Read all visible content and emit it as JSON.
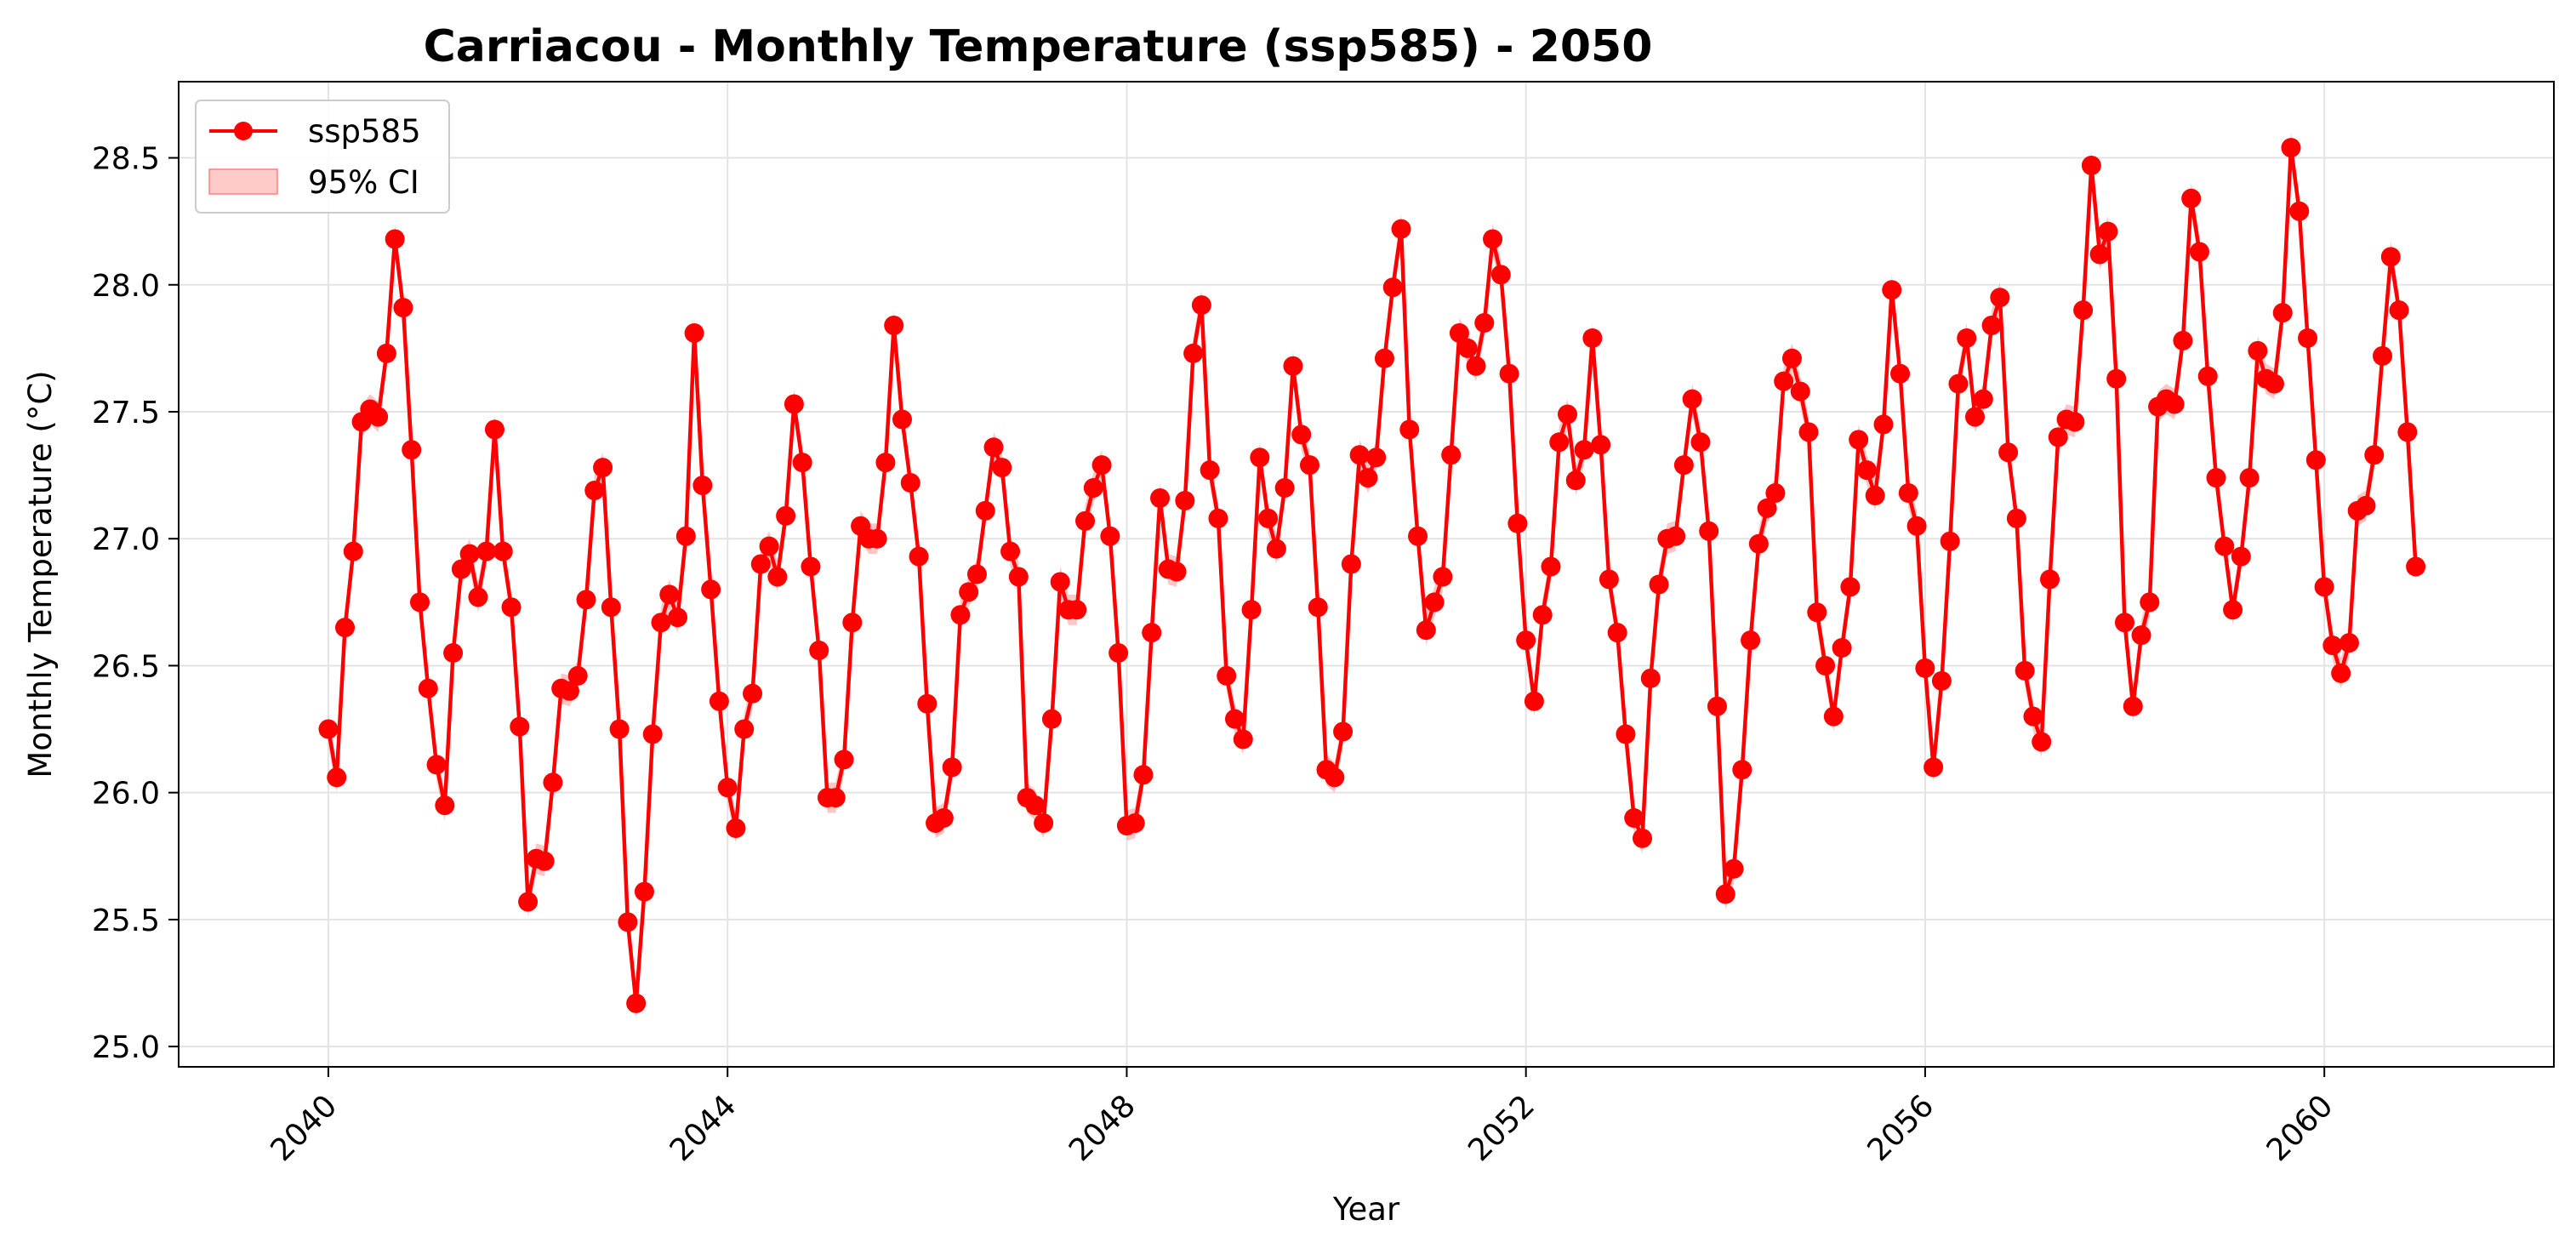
{
  "chart_data": {
    "type": "line",
    "title": "Carriacou - Monthly Temperature (ssp585) - 2050",
    "xlabel": "Year",
    "ylabel": "Monthly Temperature (°C)",
    "xlim": [
      2038.5,
      2062.3
    ],
    "ylim": [
      24.92,
      28.8
    ],
    "x_ticks": [
      2040,
      2044,
      2048,
      2052,
      2056,
      2060
    ],
    "x_tick_labels": [
      "2040",
      "2044",
      "2048",
      "2052",
      "2056",
      "2060"
    ],
    "y_ticks": [
      25.0,
      25.5,
      26.0,
      26.5,
      27.0,
      27.5,
      28.0,
      28.5
    ],
    "y_tick_labels": [
      "25.0",
      "25.5",
      "26.0",
      "26.5",
      "27.0",
      "27.5",
      "28.0",
      "28.5"
    ],
    "grid": true,
    "legend_position": "top-left",
    "colors": {
      "line": "#ff0000",
      "ci_fill": "#ffb3b3"
    },
    "ci_halfwidth": 0.06,
    "series": [
      {
        "name": "ssp585",
        "x_start": 2040.0,
        "x_step": 0.08333,
        "values": [
          26.25,
          26.06,
          26.65,
          26.95,
          27.46,
          27.51,
          27.48,
          27.73,
          28.18,
          27.91,
          27.35,
          26.75,
          26.41,
          26.11,
          25.95,
          26.55,
          26.88,
          26.94,
          26.77,
          26.95,
          27.43,
          26.95,
          26.73,
          26.26,
          25.57,
          25.74,
          25.73,
          26.04,
          26.41,
          26.4,
          26.46,
          26.76,
          27.19,
          27.28,
          26.73,
          26.25,
          25.49,
          25.17,
          25.61,
          26.23,
          26.67,
          26.78,
          26.69,
          27.01,
          27.81,
          27.21,
          26.8,
          26.36,
          26.02,
          25.86,
          26.25,
          26.39,
          26.9,
          26.97,
          26.85,
          27.09,
          27.53,
          27.3,
          26.89,
          26.56,
          25.98,
          25.98,
          26.13,
          26.67,
          27.05,
          27.0,
          27.0,
          27.3,
          27.84,
          27.47,
          27.22,
          26.93,
          26.35,
          25.88,
          25.9,
          26.1,
          26.7,
          26.79,
          26.86,
          27.11,
          27.36,
          27.28,
          26.95,
          26.85,
          25.98,
          25.95,
          25.88,
          26.29,
          26.83,
          26.72,
          26.72,
          27.07,
          27.2,
          27.29,
          27.01,
          26.55,
          25.87,
          25.88,
          26.07,
          26.63,
          27.16,
          26.88,
          26.87,
          27.15,
          27.73,
          27.92,
          27.27,
          27.08,
          26.46,
          26.29,
          26.21,
          26.72,
          27.32,
          27.08,
          26.96,
          27.2,
          27.68,
          27.41,
          27.29,
          26.73,
          26.09,
          26.06,
          26.24,
          26.9,
          27.33,
          27.24,
          27.32,
          27.71,
          27.99,
          28.22,
          27.43,
          27.01,
          26.64,
          26.75,
          26.85,
          27.33,
          27.81,
          27.75,
          27.68,
          27.85,
          28.18,
          28.04,
          27.65,
          27.06,
          26.6,
          26.36,
          26.7,
          26.89,
          27.38,
          27.49,
          27.23,
          27.35,
          27.79,
          27.37,
          26.84,
          26.63,
          26.23,
          25.9,
          25.82,
          26.45,
          26.82,
          27.0,
          27.01,
          27.29,
          27.55,
          27.38,
          27.03,
          26.34,
          25.6,
          25.7,
          26.09,
          26.6,
          26.98,
          27.12,
          27.18,
          27.62,
          27.71,
          27.58,
          27.42,
          26.71,
          26.5,
          26.3,
          26.57,
          26.81,
          27.39,
          27.27,
          27.17,
          27.45,
          27.98,
          27.65,
          27.18,
          27.05,
          26.49,
          26.1,
          26.44,
          26.99,
          27.61,
          27.79,
          27.48,
          27.55,
          27.84,
          27.95,
          27.34,
          27.08,
          26.48,
          26.3,
          26.2,
          26.84,
          27.4,
          27.47,
          27.46,
          27.9,
          28.47,
          28.12,
          28.21,
          27.63,
          26.67,
          26.34,
          26.62,
          26.75,
          27.52,
          27.55,
          27.53,
          27.78,
          28.34,
          28.13,
          27.64,
          27.24,
          26.97,
          26.72,
          26.93,
          27.24,
          27.74,
          27.63,
          27.61,
          27.89,
          28.54,
          28.29,
          27.79,
          27.31,
          26.81,
          26.58,
          26.47,
          26.59,
          27.11,
          27.13,
          27.33,
          27.72,
          28.11,
          27.9,
          27.42,
          26.89
        ]
      }
    ],
    "legend": [
      {
        "label": "ssp585",
        "kind": "line-marker"
      },
      {
        "label": "95% CI",
        "kind": "patch"
      }
    ]
  }
}
